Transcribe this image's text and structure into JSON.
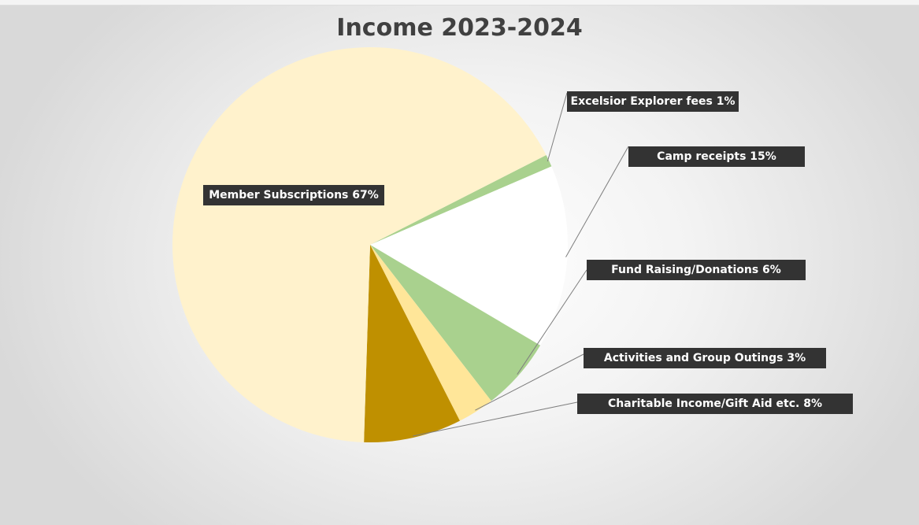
{
  "chart_data": {
    "type": "pie",
    "title": "Income 2023-2024",
    "slices": [
      {
        "label": "Excelsior Explorer fees 1%",
        "value": 1,
        "color": "#a9d18e"
      },
      {
        "label": "Camp receipts 15%",
        "value": 15,
        "color": "#ffffff"
      },
      {
        "label": "Fund Raising/Donations 6%",
        "value": 6,
        "color": "#a9d18e"
      },
      {
        "label": "Activities and Group Outings  3%",
        "value": 3,
        "color": "#ffe699"
      },
      {
        "label": "Charitable Income/Gift Aid etc. 8%",
        "value": 8,
        "color": "#bf9000"
      },
      {
        "label": "Member Subscriptions 67%",
        "value": 67,
        "color": "#fff2cc"
      }
    ]
  }
}
